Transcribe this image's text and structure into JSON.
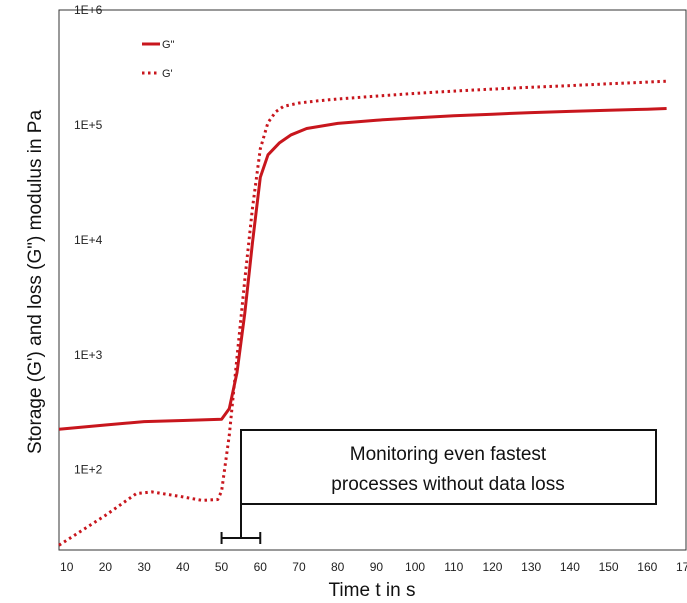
{
  "chart_data": {
    "type": "line",
    "title": "",
    "xlabel": "Time t in s",
    "ylabel": "Storage (G') and loss (G\") modulus in Pa",
    "y_scale": "log",
    "xlim": [
      8,
      170
    ],
    "ylim": [
      20,
      1000000
    ],
    "x_ticks": [
      10,
      20,
      30,
      40,
      50,
      60,
      70,
      80,
      90,
      100,
      110,
      120,
      130,
      140,
      150,
      160,
      170
    ],
    "x_tick_labels": [
      "10",
      "20",
      "30",
      "40",
      "50",
      "60",
      "70",
      "80",
      "90",
      "100",
      "110",
      "120",
      "130",
      "140",
      "150",
      "160",
      "170"
    ],
    "y_ticks": [
      100,
      1000,
      10000,
      100000,
      1000000
    ],
    "y_tick_labels": [
      "1E+2",
      "1E+3",
      "1E+4",
      "1E+5",
      "1E+6"
    ],
    "grid": false,
    "legend_position": "top-left",
    "colors": {
      "series": "#c8161d",
      "frame": "#333333"
    },
    "series": [
      {
        "name": "G\"",
        "style": "solid",
        "x": [
          8,
          20,
          30,
          40,
          50,
          52,
          54,
          56,
          58,
          60,
          62,
          65,
          68,
          72,
          80,
          90,
          100,
          110,
          120,
          130,
          140,
          150,
          160,
          165
        ],
        "y": [
          225,
          245,
          262,
          268,
          275,
          340,
          700,
          2300,
          9500,
          35000,
          55000,
          70000,
          82000,
          93000,
          103000,
          110000,
          115000,
          120000,
          124000,
          128000,
          131000,
          134000,
          137000,
          139000
        ]
      },
      {
        "name": "G'",
        "style": "dotted",
        "x": [
          8,
          20,
          28,
          32,
          40,
          45,
          49,
          50,
          52,
          54,
          56,
          58,
          60,
          62,
          64,
          66,
          70,
          75,
          80,
          90,
          100,
          110,
          120,
          130,
          140,
          150,
          160,
          165
        ],
        "y": [
          22,
          40,
          62,
          64,
          58,
          54,
          55,
          65,
          200,
          950,
          4500,
          19000,
          62000,
          105000,
          130000,
          145000,
          155000,
          162000,
          168000,
          178000,
          188000,
          197000,
          205000,
          213000,
          220000,
          228000,
          236000,
          240000
        ]
      }
    ],
    "annotation": {
      "lines": [
        "Monitoring even fastest",
        "processes without data loss"
      ],
      "bracket_x": [
        50,
        60
      ]
    }
  }
}
